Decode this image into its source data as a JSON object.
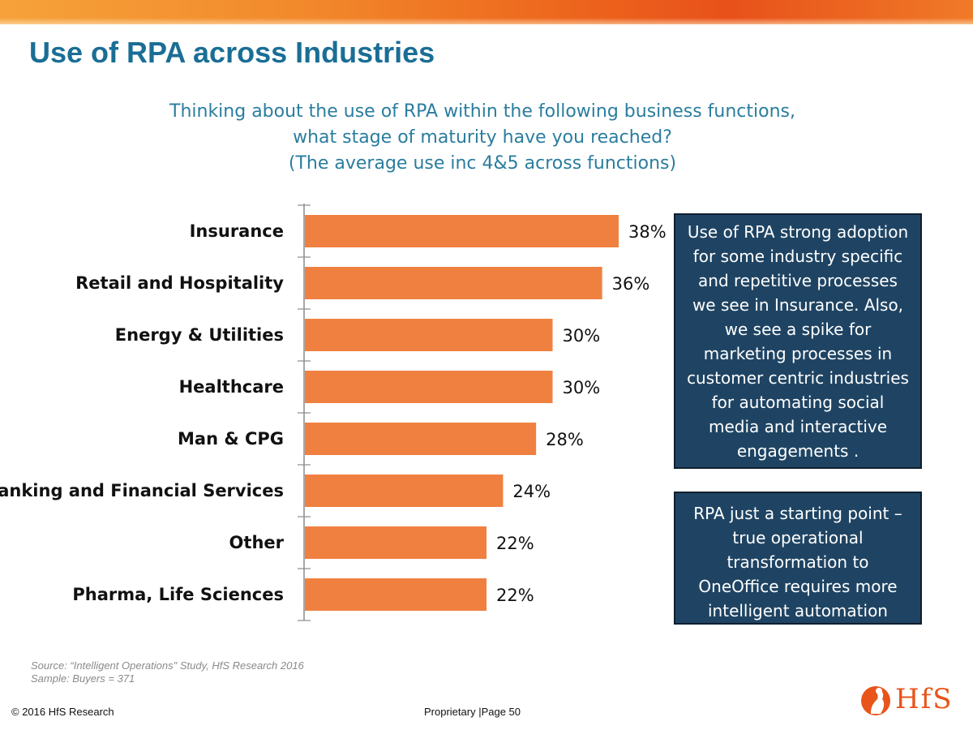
{
  "header": {
    "title": "Use of RPA across Industries",
    "question_lines": [
      "Thinking about the use of RPA within the following business functions,",
      "what stage of maturity have you reached?",
      "(The average use inc 4&5 across functions)"
    ]
  },
  "chart_data": {
    "type": "bar",
    "orientation": "horizontal",
    "categories": [
      "Insurance",
      "Retail and Hospitality",
      "Energy & Utilities",
      "Healthcare",
      "Man & CPG",
      "Banking and Financial Services",
      "Other",
      "Pharma, Life Sciences"
    ],
    "values": [
      38,
      36,
      30,
      30,
      28,
      24,
      22,
      22
    ],
    "value_labels": [
      "38%",
      "36%",
      "30%",
      "30%",
      "28%",
      "24%",
      "22%",
      "22%"
    ],
    "unit": "%",
    "bar_color": "#f08040",
    "grid": false,
    "legend": "none"
  },
  "callouts": [
    {
      "lines": [
        "Use of RPA strong adoption",
        "for some industry specific",
        "and repetitive processes",
        "we see in Insurance. Also,",
        "we see a spike for",
        "marketing processes in",
        "customer centric industries",
        "for automating social",
        "media and interactive",
        "engagements ."
      ]
    },
    {
      "lines": [
        "RPA just a starting point –",
        "true operational",
        "transformation to",
        "OneOffice requires more",
        "intelligent automation"
      ]
    }
  ],
  "footer": {
    "source": "Source: “Intelligent Operations\" Study, HfS Research 2016",
    "sample": "Sample: Buyers = 371",
    "copyright": "© 2016 HfS Research",
    "page": "Proprietary |Page 50",
    "logo_text": "HfS"
  },
  "colors": {
    "title": "#1a6e95",
    "question": "#2a7d9e",
    "callout_bg": "#1f4463",
    "logo": "#e8541a"
  }
}
